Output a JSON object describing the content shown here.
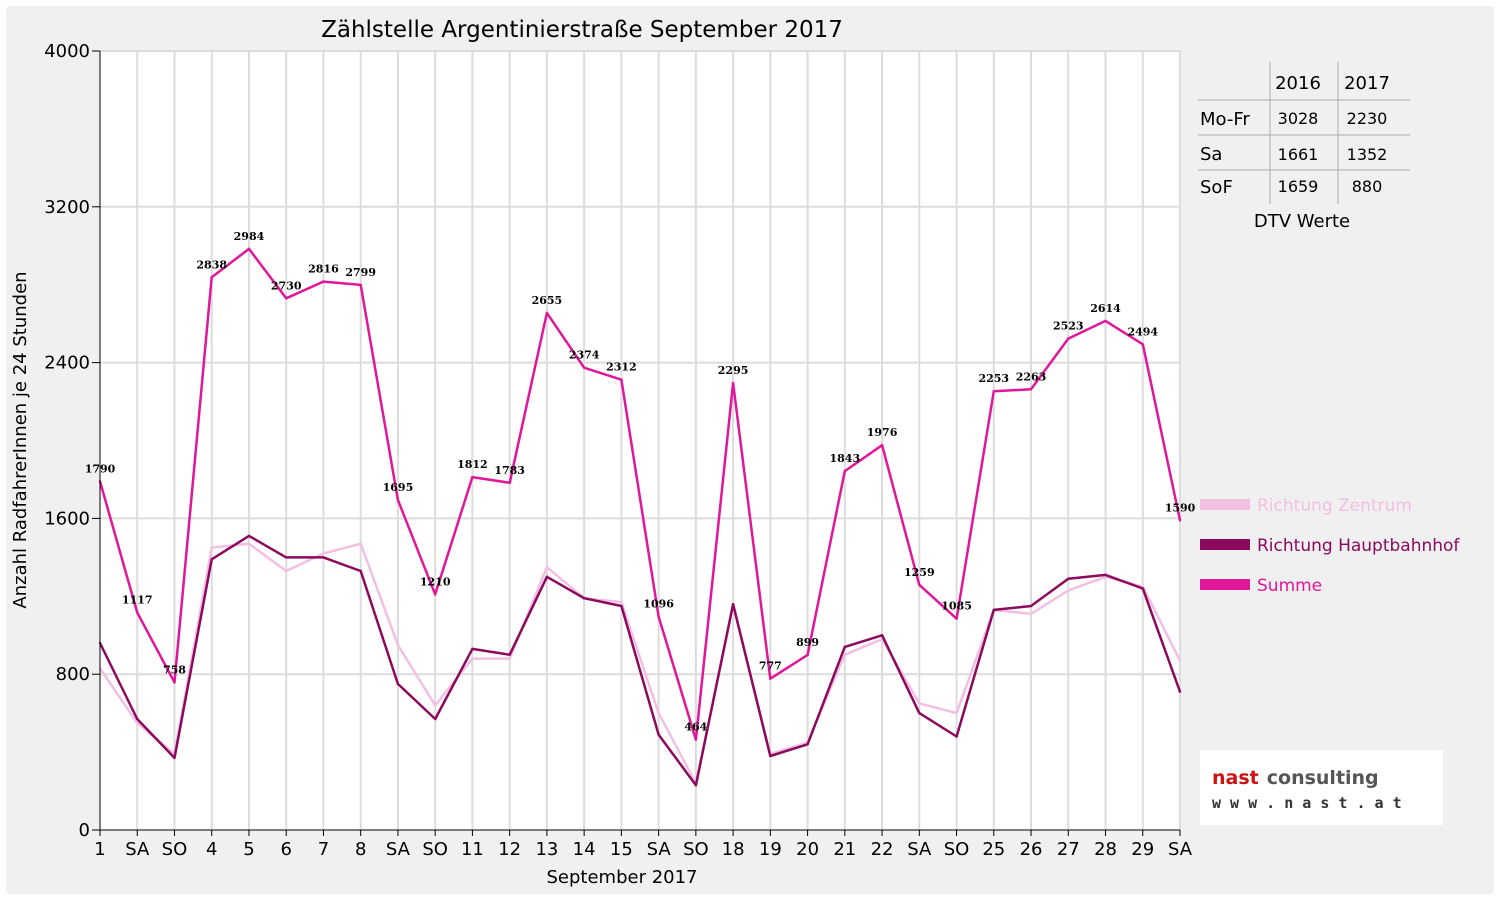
{
  "chart_data": {
    "type": "line",
    "title": "Zählstelle Argentinierstraße September 2017",
    "xlabel": "September 2017",
    "ylabel": "Anzahl RadfahrerInnen je 24 Stunden",
    "ylim": [
      0,
      4000
    ],
    "yticks": [
      0,
      800,
      1600,
      2400,
      3200,
      4000
    ],
    "grid": true,
    "legend_position": "right",
    "categories": [
      "1",
      "SA",
      "SO",
      "4",
      "5",
      "6",
      "7",
      "8",
      "SA",
      "SO",
      "11",
      "12",
      "13",
      "14",
      "15",
      "SA",
      "SO",
      "18",
      "19",
      "20",
      "21",
      "22",
      "SA",
      "SO",
      "25",
      "26",
      "27",
      "28",
      "29",
      "SA"
    ],
    "category_colors": {
      "SO": "#ff0000"
    },
    "series": [
      {
        "name": "Richtung Zentrum",
        "color": "#f2bfe3",
        "values": [
          830,
          550,
          390,
          1450,
          1470,
          1330,
          1420,
          1470,
          950,
          640,
          880,
          880,
          1350,
          1190,
          1170,
          600,
          240,
          1150,
          390,
          450,
          900,
          980,
          650,
          600,
          1130,
          1110,
          1230,
          1300,
          1250,
          870
        ]
      },
      {
        "name": "Richtung Hauptbahnhof",
        "color": "#8b0a5e",
        "values": [
          960,
          570,
          370,
          1390,
          1510,
          1400,
          1400,
          1330,
          750,
          570,
          930,
          900,
          1300,
          1190,
          1150,
          490,
          230,
          1160,
          380,
          440,
          940,
          1000,
          600,
          480,
          1130,
          1150,
          1290,
          1310,
          1240,
          710
        ]
      },
      {
        "name": "Summe",
        "color": "#e0179a",
        "values": [
          1790,
          1117,
          758,
          2838,
          2984,
          2730,
          2816,
          2799,
          1695,
          1210,
          1812,
          1783,
          2655,
          2374,
          2312,
          1096,
          464,
          2295,
          777,
          899,
          1843,
          1976,
          1259,
          1085,
          2253,
          2263,
          2523,
          2614,
          2494,
          1590
        ]
      }
    ],
    "data_labels": [
      1790,
      1117,
      758,
      2838,
      2984,
      2730,
      2816,
      2799,
      1695,
      1210,
      1812,
      1783,
      2655,
      2374,
      2312,
      1096,
      464,
      2295,
      777,
      899,
      1843,
      1976,
      1259,
      1085,
      2253,
      2263,
      2523,
      2614,
      2494,
      1590
    ]
  },
  "dtv_table": {
    "columns": [
      "",
      "2016",
      "2017"
    ],
    "rows": [
      {
        "label": "Mo-Fr",
        "v2016": "3028",
        "v2017": "2230"
      },
      {
        "label": "Sa",
        "v2016": "1661",
        "v2017": "1352"
      },
      {
        "label": "SoF",
        "v2016": "1659",
        "v2017": "880"
      }
    ],
    "caption": "DTV Werte"
  },
  "logo": {
    "main_prefix": "nast",
    "main_suffix": "consulting",
    "sub": "w w w . n a s t . a t",
    "prefix_color": "#cc1111",
    "suffix_color": "#555555"
  }
}
